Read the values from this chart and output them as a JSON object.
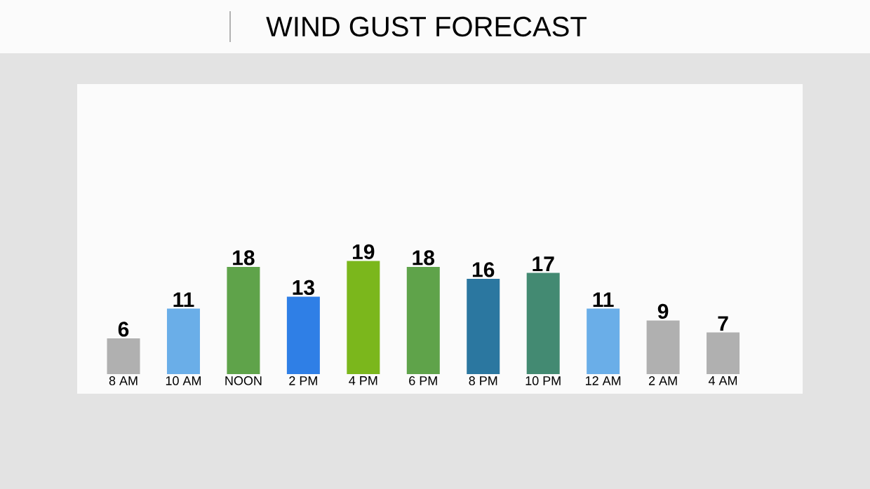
{
  "chart_data": {
    "type": "bar",
    "title": "WIND GUST FORECAST",
    "categories": [
      "8 AM",
      "10 AM",
      "NOON",
      "2 PM",
      "4 PM",
      "6 PM",
      "8 PM",
      "10 PM",
      "12 AM",
      "2 AM",
      "4 AM"
    ],
    "values": [
      6,
      11,
      18,
      13,
      19,
      18,
      16,
      17,
      11,
      9,
      7
    ],
    "colors": [
      "#b0b0b0",
      "#6aaee8",
      "#5fa34a",
      "#2f7fe6",
      "#7bb71c",
      "#5fa34a",
      "#2b77a0",
      "#438a72",
      "#6aaee8",
      "#b0b0b0",
      "#b0b0b0"
    ],
    "data_labels": true
  }
}
